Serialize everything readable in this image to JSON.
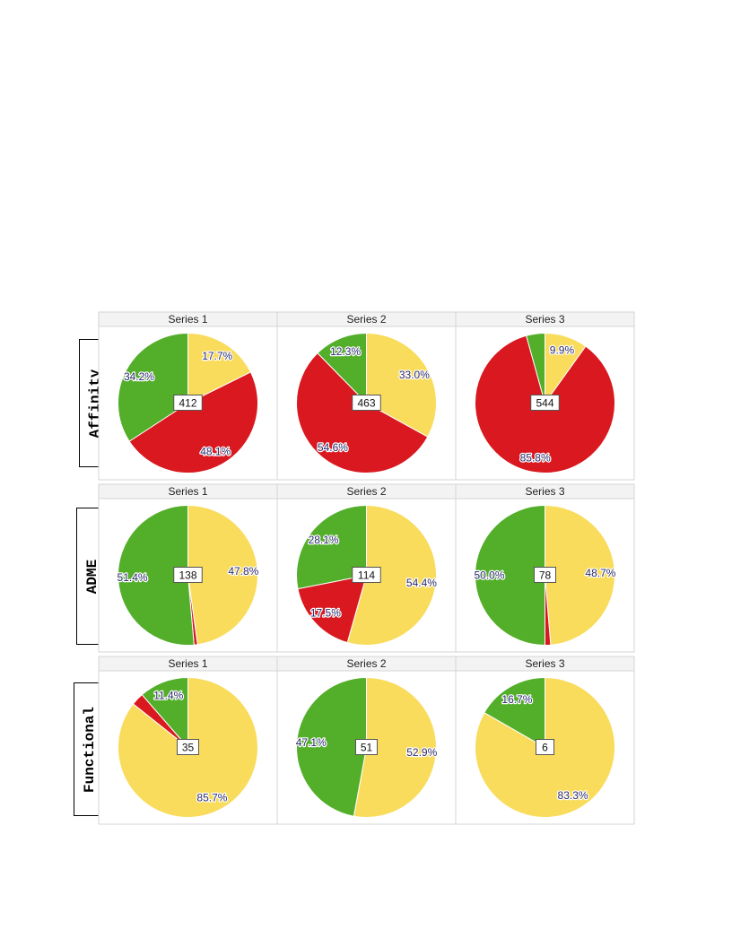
{
  "colors": {
    "positive": "#53ae2a",
    "neutral": "#f9dc5c",
    "negative": "#d9181f"
  },
  "chart_data": [
    {
      "type": "pie",
      "row": "Affinity",
      "panels": [
        {
          "title": "Series 1",
          "center_label": "412",
          "slices": [
            {
              "value": 17.7,
              "color": "#f9dc5c",
              "label": "17.7%"
            },
            {
              "value": 48.1,
              "color": "#d9181f",
              "label": "48.1%"
            },
            {
              "value": 34.2,
              "color": "#53ae2a",
              "label": "34.2%"
            }
          ]
        },
        {
          "title": "Series 2",
          "center_label": "463",
          "slices": [
            {
              "value": 33.0,
              "color": "#f9dc5c",
              "label": "33.0%"
            },
            {
              "value": 54.6,
              "color": "#d9181f",
              "label": "54.6%"
            },
            {
              "value": 12.3,
              "color": "#53ae2a",
              "label": "12.3%"
            }
          ]
        },
        {
          "title": "Series 3",
          "center_label": "544",
          "slices": [
            {
              "value": 9.9,
              "color": "#f9dc5c",
              "label": "9.9%"
            },
            {
              "value": 85.8,
              "color": "#d9181f",
              "label": "85.8%"
            },
            {
              "value": 4.3,
              "color": "#53ae2a",
              "label": ""
            }
          ]
        }
      ]
    },
    {
      "type": "pie",
      "row": "ADME",
      "panels": [
        {
          "title": "Series 1",
          "center_label": "138",
          "slices": [
            {
              "value": 47.8,
              "color": "#f9dc5c",
              "label": "47.8%"
            },
            {
              "value": 0.8,
              "color": "#d9181f",
              "label": ""
            },
            {
              "value": 51.4,
              "color": "#53ae2a",
              "label": "51.4%"
            }
          ]
        },
        {
          "title": "Series 2",
          "center_label": "114",
          "slices": [
            {
              "value": 54.4,
              "color": "#f9dc5c",
              "label": "54.4%"
            },
            {
              "value": 17.5,
              "color": "#d9181f",
              "label": "17.5%"
            },
            {
              "value": 28.1,
              "color": "#53ae2a",
              "label": "28.1%"
            }
          ]
        },
        {
          "title": "Series 3",
          "center_label": "78",
          "slices": [
            {
              "value": 48.7,
              "color": "#f9dc5c",
              "label": "48.7%"
            },
            {
              "value": 1.3,
              "color": "#d9181f",
              "label": ""
            },
            {
              "value": 50.0,
              "color": "#53ae2a",
              "label": "50.0%"
            }
          ]
        }
      ]
    },
    {
      "type": "pie",
      "row": "Functional",
      "panels": [
        {
          "title": "Series 1",
          "center_label": "35",
          "slices": [
            {
              "value": 85.7,
              "color": "#f9dc5c",
              "label": "85.7%"
            },
            {
              "value": 2.9,
              "color": "#d9181f",
              "label": ""
            },
            {
              "value": 11.4,
              "color": "#53ae2a",
              "label": "11.4%"
            }
          ]
        },
        {
          "title": "Series 2",
          "center_label": "51",
          "slices": [
            {
              "value": 52.9,
              "color": "#f9dc5c",
              "label": "52.9%"
            },
            {
              "value": 0,
              "color": "#d9181f",
              "label": ""
            },
            {
              "value": 47.1,
              "color": "#53ae2a",
              "label": "47.1%"
            }
          ]
        },
        {
          "title": "Series 3",
          "center_label": "6",
          "slices": [
            {
              "value": 83.3,
              "color": "#f9dc5c",
              "label": "83.3%"
            },
            {
              "value": 0,
              "color": "#d9181f",
              "label": ""
            },
            {
              "value": 16.7,
              "color": "#53ae2a",
              "label": "16.7%"
            }
          ]
        }
      ]
    }
  ]
}
